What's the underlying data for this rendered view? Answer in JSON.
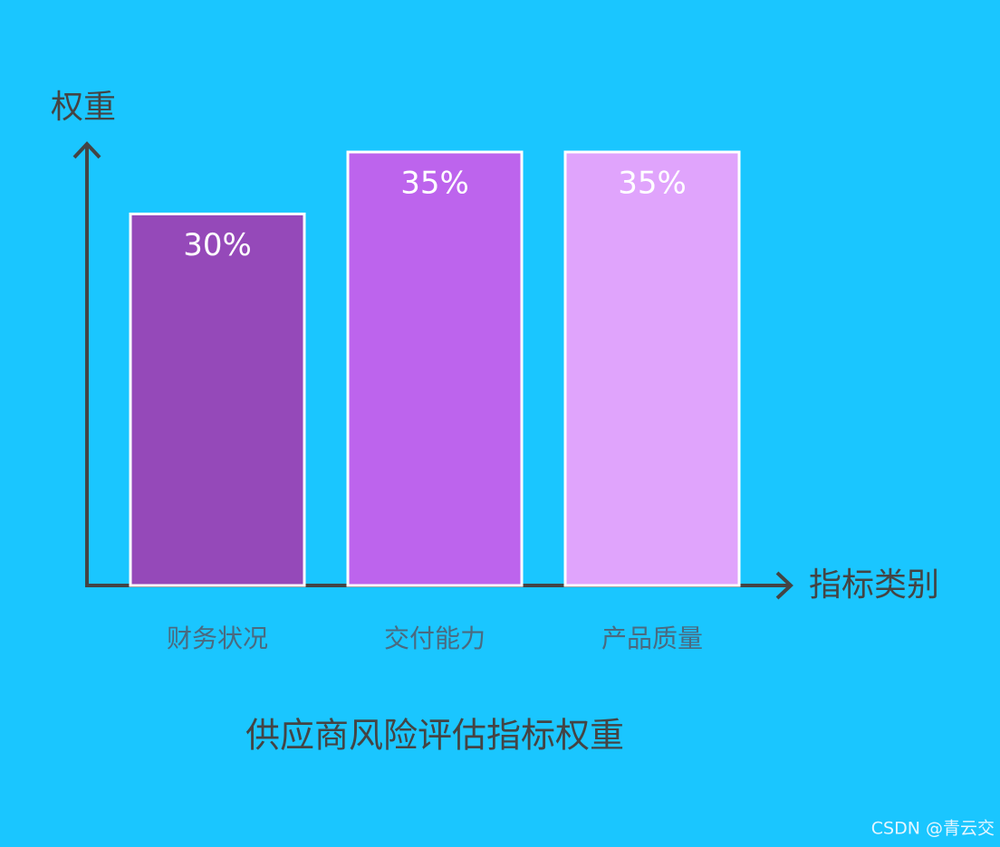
{
  "chart_data": {
    "type": "bar",
    "title": "供应商风险评估指标权重",
    "x_label": "指标类别",
    "y_label": "权重",
    "categories": [
      "财务状况",
      "交付能力",
      "产品质量"
    ],
    "values": [
      30,
      35,
      35
    ],
    "value_labels": [
      "30%",
      "35%",
      "35%"
    ],
    "colors": [
      "#9549b9",
      "#bd64ed",
      "#e0a4fc"
    ],
    "ylim": [
      0,
      35
    ]
  },
  "watermark": "CSDN @青云交"
}
